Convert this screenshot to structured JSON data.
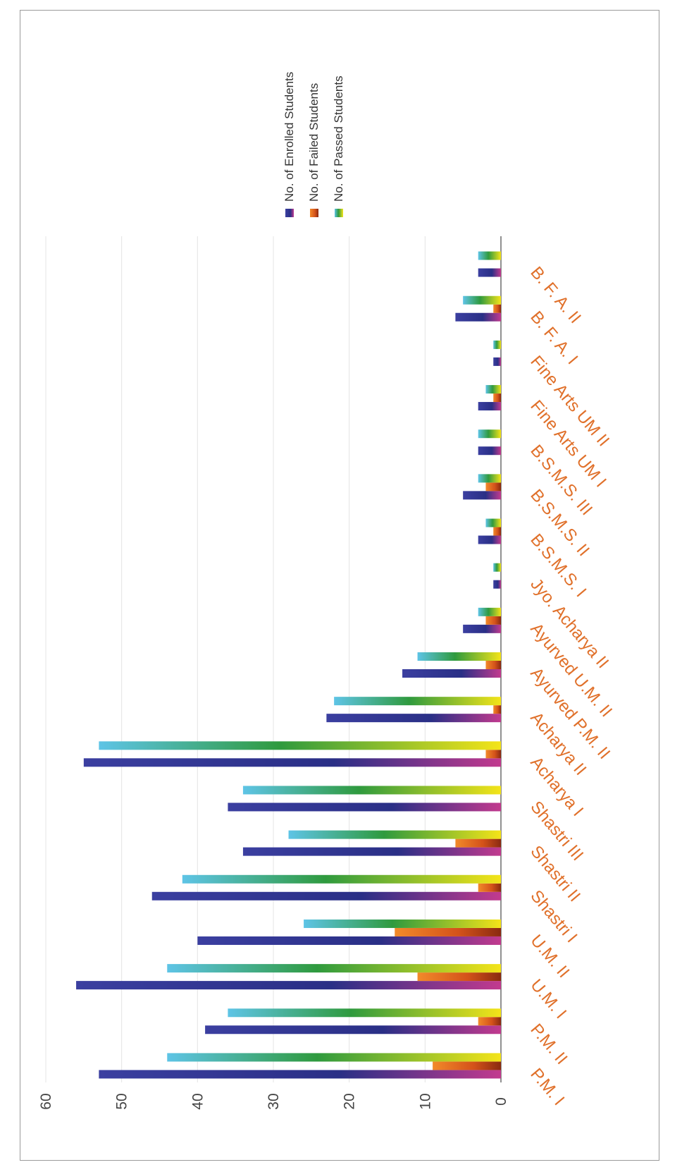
{
  "chart_data": {
    "type": "bar",
    "orientation": "vertical bars, figure rotated 90° clockwise",
    "categories": [
      "P.M. I",
      "P.M. II",
      "U.M. I",
      "U.M. II",
      "Shastri I",
      "Shastri II",
      "Shastri III",
      "Acharya I",
      "Acharya II",
      "Ayurved P.M. II",
      "Ayurved U.M. II",
      "Jyo. Acharya II",
      "B.S.M.S. I",
      "B.S.M.S. II",
      "B.S.M.S. III",
      "Fine Arts UM I",
      "Fine Arts UM II",
      "B. F. A. I",
      "B. F. A. II"
    ],
    "series": [
      {
        "name": "No. of Enrolled Students",
        "color": "#3b3fa0",
        "values": [
          53,
          39,
          56,
          40,
          46,
          34,
          36,
          55,
          23,
          13,
          5,
          1,
          3,
          5,
          3,
          3,
          1,
          6,
          3
        ]
      },
      {
        "name": "No. of Failed Students",
        "color": "#e2661c",
        "values": [
          9,
          3,
          11,
          14,
          3,
          6,
          0,
          2,
          1,
          2,
          2,
          0,
          1,
          2,
          0,
          1,
          0,
          1,
          0
        ]
      },
      {
        "name": "No. of Passed Students",
        "color": "#3aa04a",
        "values": [
          44,
          36,
          44,
          26,
          42,
          28,
          34,
          53,
          22,
          11,
          3,
          1,
          2,
          3,
          3,
          2,
          1,
          5,
          3
        ]
      }
    ],
    "ylim": [
      0,
      60
    ],
    "yticks": [
      0,
      10,
      20,
      30,
      40,
      50,
      60
    ],
    "grid": true,
    "legend": "top-right"
  }
}
